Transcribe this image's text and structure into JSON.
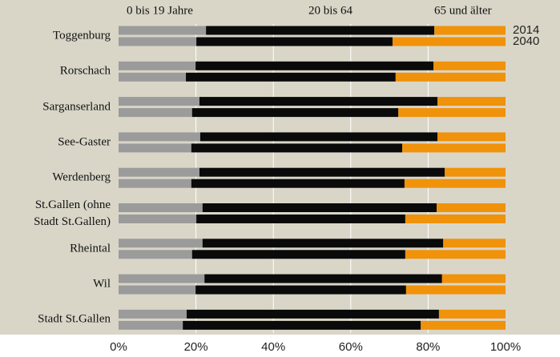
{
  "chart_data": {
    "type": "bar",
    "orientation": "horizontal",
    "stacked": true,
    "categories": [
      "Toggenburg",
      "Rorschach",
      "Sarganserland",
      "See-Gaster",
      "Werdenberg",
      "St.Gallen (ohne\nStadt St.Gallen)",
      "Rheintal",
      "Wil",
      "Stadt St.Gallen"
    ],
    "bar_labels": [
      "2014",
      "2040"
    ],
    "series": [
      {
        "name": "0 bis 19 Jahre",
        "color": "#9b9b9b",
        "values": [
          [
            22.6,
            20.1
          ],
          [
            19.9,
            17.4
          ],
          [
            20.9,
            19.0
          ],
          [
            21.1,
            18.8
          ],
          [
            20.9,
            18.8
          ],
          [
            21.7,
            20.1
          ],
          [
            21.7,
            19.0
          ],
          [
            22.2,
            19.9
          ],
          [
            17.6,
            16.6
          ]
        ]
      },
      {
        "name": "20 bis 64",
        "color": "#0a0a0a",
        "values": [
          [
            59.0,
            50.7
          ],
          [
            61.5,
            54.2
          ],
          [
            61.5,
            53.3
          ],
          [
            61.3,
            54.5
          ],
          [
            63.4,
            55.1
          ],
          [
            60.5,
            54.0
          ],
          [
            62.2,
            55.1
          ],
          [
            61.4,
            54.4
          ],
          [
            65.2,
            61.5
          ]
        ]
      },
      {
        "name": "65 und älter",
        "color": "#f0920a",
        "values": [
          [
            18.4,
            29.2
          ],
          [
            18.6,
            28.4
          ],
          [
            17.6,
            27.7
          ],
          [
            17.6,
            26.7
          ],
          [
            15.7,
            26.1
          ],
          [
            17.8,
            25.9
          ],
          [
            16.1,
            25.9
          ],
          [
            16.4,
            25.7
          ],
          [
            17.2,
            21.9
          ]
        ]
      }
    ],
    "xlim": [
      0,
      100
    ],
    "xticks": [
      {
        "value": 0,
        "label": "0%"
      },
      {
        "value": 20,
        "label": "20%"
      },
      {
        "value": 40,
        "label": "40%"
      },
      {
        "value": 60,
        "label": "60%"
      },
      {
        "value": 80,
        "label": "80%"
      },
      {
        "value": 100,
        "label": "100%"
      }
    ],
    "grid": true
  }
}
